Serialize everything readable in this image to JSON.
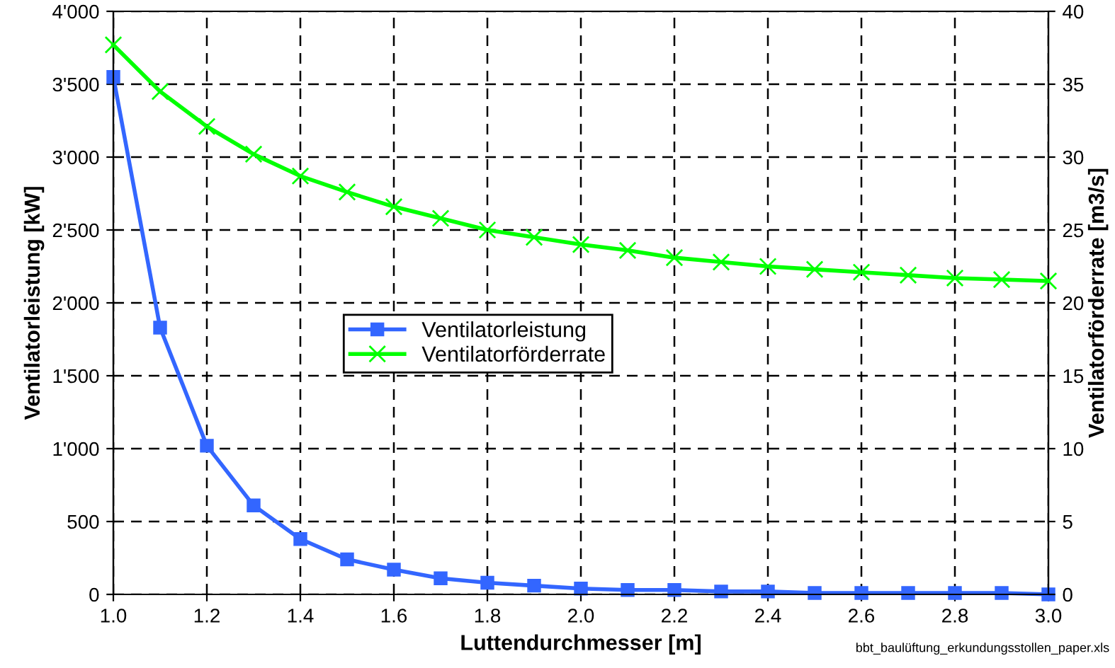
{
  "chart_data": {
    "type": "line",
    "xlabel": "Luttendurchmesser [m]",
    "ylabel": "Ventilatorleistung [kW]",
    "y2label": "Ventilatorförderrate [m3/s]",
    "x": [
      1.0,
      1.1,
      1.2,
      1.3,
      1.4,
      1.5,
      1.6,
      1.7,
      1.8,
      1.9,
      2.0,
      2.1,
      2.2,
      2.3,
      2.4,
      2.5,
      2.6,
      2.7,
      2.8,
      2.9,
      3.0
    ],
    "series": [
      {
        "name": "Ventilatorleistung",
        "color": "#3366ff",
        "marker": "square",
        "values": [
          3550,
          1830,
          1020,
          610,
          380,
          240,
          170,
          110,
          80,
          60,
          40,
          30,
          30,
          20,
          20,
          10,
          10,
          10,
          10,
          10,
          0
        ]
      },
      {
        "name": "Ventilatorförderrate",
        "color": "#00ff00",
        "marker": "cross",
        "axis": "y2",
        "values": [
          37.7,
          34.5,
          32.1,
          30.2,
          28.7,
          27.6,
          26.6,
          25.8,
          25.0,
          24.5,
          24.0,
          23.6,
          23.1,
          22.8,
          22.5,
          22.3,
          22.1,
          21.9,
          21.7,
          21.6,
          21.5
        ]
      }
    ],
    "xlim": [
      1.0,
      3.0
    ],
    "xticks": [
      {
        "value": 1.0,
        "label": "1.0"
      },
      {
        "value": 1.2,
        "label": "1.2"
      },
      {
        "value": 1.4,
        "label": "1.4"
      },
      {
        "value": 1.6,
        "label": "1.6"
      },
      {
        "value": 1.8,
        "label": "1.8"
      },
      {
        "value": 2.0,
        "label": "2.0"
      },
      {
        "value": 2.2,
        "label": "2.2"
      },
      {
        "value": 2.4,
        "label": "2.4"
      },
      {
        "value": 2.6,
        "label": "2.6"
      },
      {
        "value": 2.8,
        "label": "2.8"
      },
      {
        "value": 3.0,
        "label": "3.0"
      }
    ],
    "ylim": [
      0,
      4000
    ],
    "yticks": [
      0,
      500,
      {
        "value": 1000,
        "label": "1'000"
      },
      {
        "value": 1500,
        "label": "1'500"
      },
      {
        "value": 2000,
        "label": "2'000"
      },
      {
        "value": 2500,
        "label": "2'500"
      },
      {
        "value": 3000,
        "label": "3'000"
      },
      {
        "value": 3500,
        "label": "3'500"
      },
      {
        "value": 4000,
        "label": "4'000"
      }
    ],
    "y2lim": [
      0,
      40
    ],
    "y2ticks": [
      0,
      5,
      10,
      15,
      20,
      25,
      30,
      35,
      40
    ],
    "grid": true,
    "legend": "center",
    "line_style": "solid",
    "annotations": [
      "bbt_baulüftung_erkundungsstollen_paper.xls"
    ]
  }
}
